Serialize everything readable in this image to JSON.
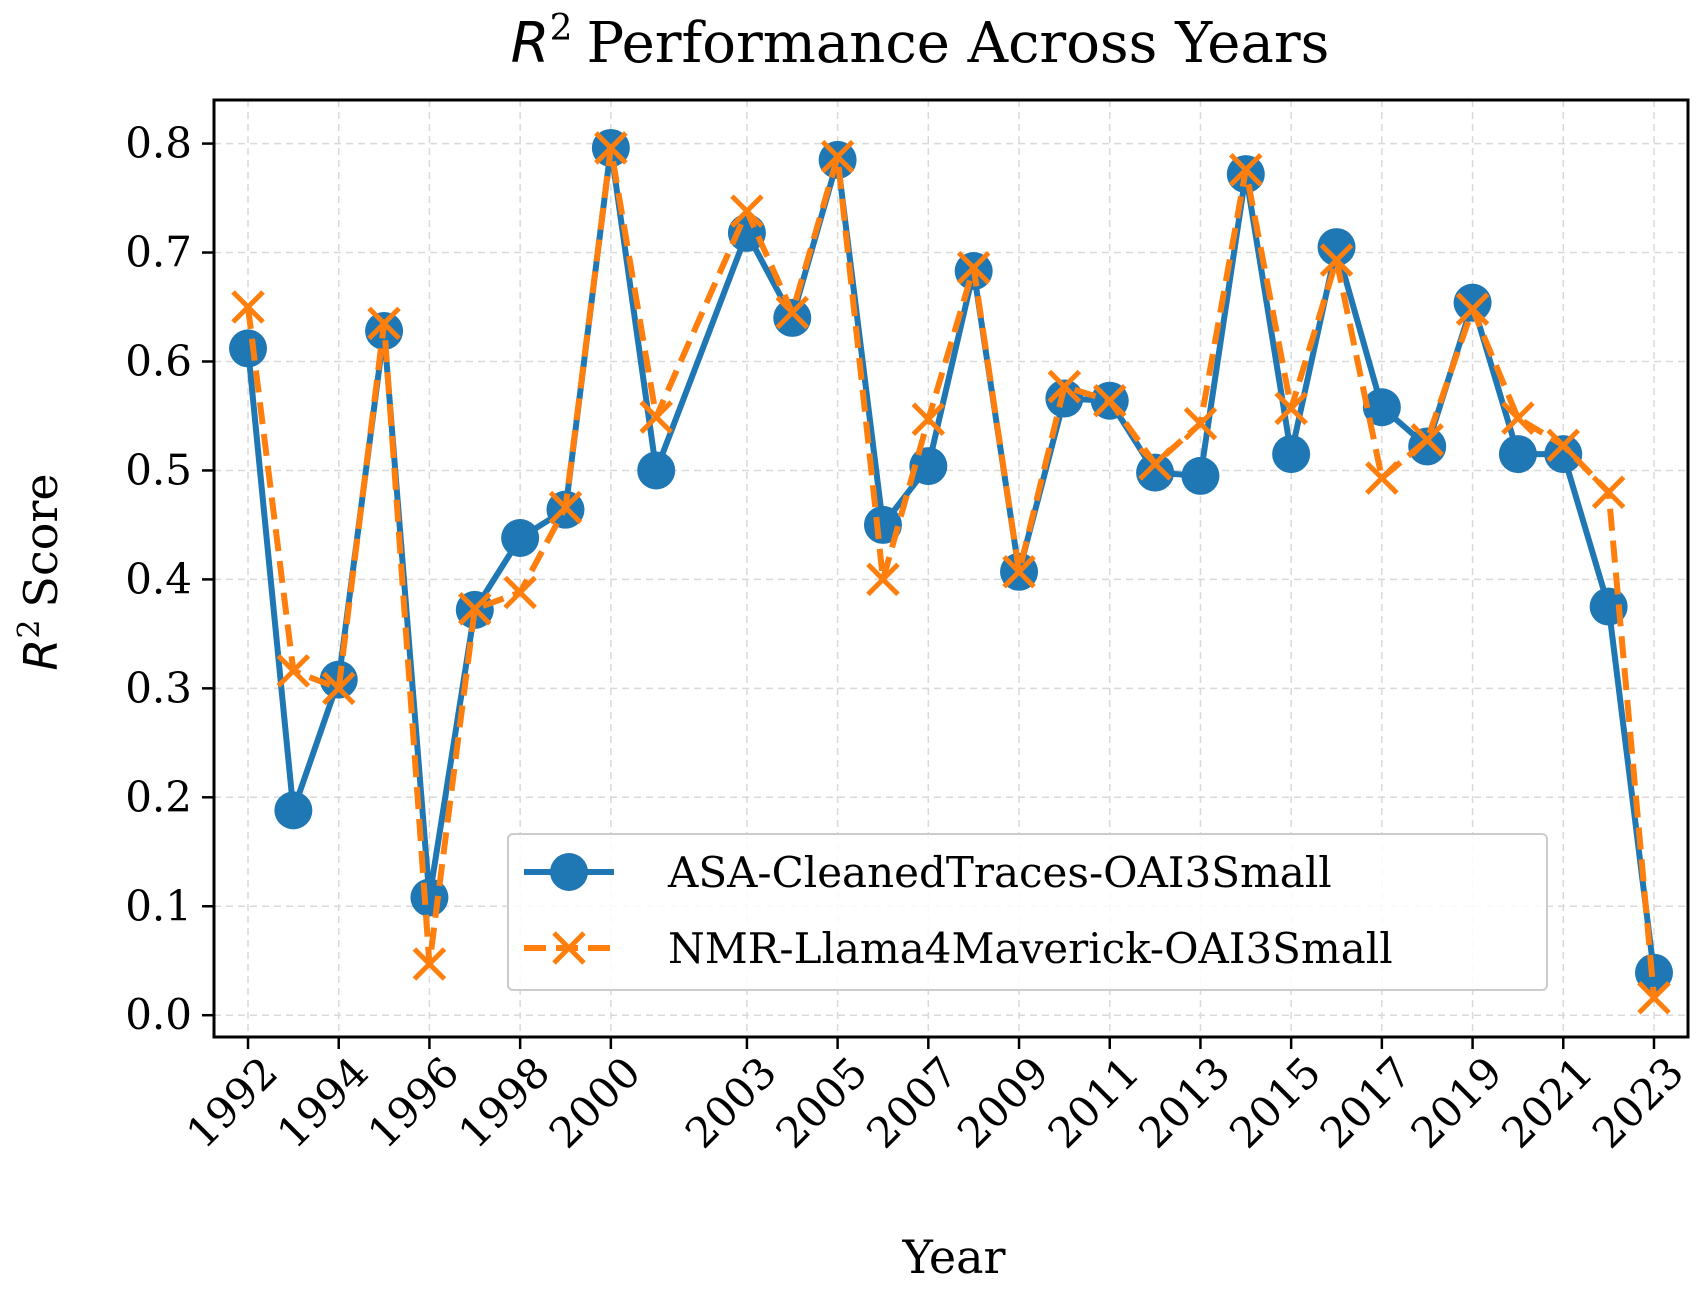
{
  "chart_data": {
    "type": "line",
    "title": "R^2 Performance Across Years",
    "title_parts": {
      "math": "R",
      "sup": "2",
      "rest": "Performance Across Years"
    },
    "xlabel": "Year",
    "ylabel": "R^2 Score",
    "ylabel_parts": {
      "math": "R",
      "sup": "2",
      "rest": "Score"
    },
    "x": [
      1992,
      1993,
      1994,
      1995,
      1996,
      1997,
      1998,
      1999,
      2000,
      2001,
      2003,
      2004,
      2005,
      2006,
      2007,
      2008,
      2009,
      2010,
      2011,
      2012,
      2013,
      2014,
      2015,
      2016,
      2017,
      2018,
      2019,
      2020,
      2021,
      2022,
      2023
    ],
    "xticks": [
      1992,
      1994,
      1996,
      1998,
      2000,
      2003,
      2005,
      2007,
      2009,
      2011,
      2013,
      2015,
      2017,
      2019,
      2021,
      2023
    ],
    "ylim": [
      -0.02,
      0.84
    ],
    "yticks": [
      0.0,
      0.1,
      0.2,
      0.3,
      0.4,
      0.5,
      0.6,
      0.7,
      0.8
    ],
    "ytick_labels": [
      "0.0",
      "0.1",
      "0.2",
      "0.3",
      "0.4",
      "0.5",
      "0.6",
      "0.7",
      "0.8"
    ],
    "grid": true,
    "legend_position": "lower-right",
    "series": [
      {
        "name": "ASA-CleanedTraces-OAI3Small",
        "color": "#1f77b4",
        "marker": "circle",
        "linestyle": "solid",
        "values": [
          0.612,
          0.188,
          0.308,
          0.628,
          0.108,
          0.372,
          0.438,
          0.464,
          0.796,
          0.5,
          0.718,
          0.64,
          0.785,
          0.45,
          0.504,
          0.683,
          0.407,
          0.566,
          0.564,
          0.498,
          0.495,
          0.772,
          0.515,
          0.705,
          0.558,
          0.522,
          0.654,
          0.515,
          0.515,
          0.375,
          0.039
        ]
      },
      {
        "name": "NMR-Llama4Maverick-OAI3Small",
        "color": "#ff7f0e",
        "marker": "x",
        "linestyle": "dashed",
        "values": [
          0.65,
          0.316,
          0.3,
          0.635,
          0.047,
          0.373,
          0.388,
          0.466,
          0.796,
          0.549,
          0.738,
          0.645,
          0.788,
          0.4,
          0.547,
          0.686,
          0.407,
          0.577,
          0.564,
          0.506,
          0.543,
          0.776,
          0.557,
          0.693,
          0.493,
          0.528,
          0.648,
          0.548,
          0.523,
          0.48,
          0.016
        ]
      }
    ]
  }
}
